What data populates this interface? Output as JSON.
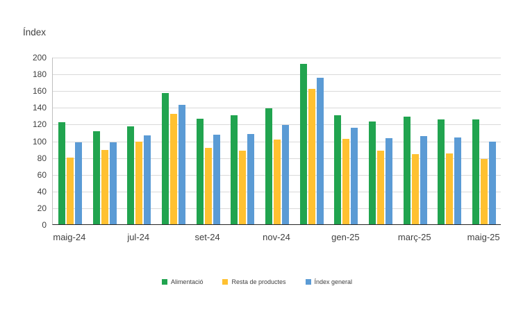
{
  "chart_data": {
    "type": "bar",
    "title": "Índex",
    "categories": [
      "maig-24",
      "",
      "jul-24",
      "",
      "set-24",
      "",
      "nov-24",
      "",
      "gen-25",
      "",
      "març-25",
      "",
      "maig-25"
    ],
    "series": [
      {
        "name": "Alimentació",
        "color": "#21a44f",
        "values": [
          122,
          111,
          117,
          157,
          126,
          130,
          139,
          192,
          130,
          123,
          129,
          125,
          125
        ]
      },
      {
        "name": "Resta de productes",
        "color": "#ffc131",
        "values": [
          80,
          89,
          99,
          132,
          91,
          88,
          101,
          162,
          102,
          88,
          84,
          85,
          78
        ]
      },
      {
        "name": "Índex general",
        "color": "#5b9bd5",
        "values": [
          98,
          98,
          106,
          143,
          107,
          108,
          119,
          175,
          115,
          103,
          105,
          104,
          99
        ]
      }
    ],
    "ylabel": "Índex",
    "xlabel": "",
    "ylim": [
      0,
      200
    ],
    "ytick_step": 20,
    "grid": true,
    "legend_position": "bottom",
    "colors": {
      "gridline": "#d9d9d9",
      "axis_line": "#262626",
      "y_axis_line": "#bfbfbf",
      "text": "#3f3f3f",
      "background": "#ffffff"
    }
  }
}
